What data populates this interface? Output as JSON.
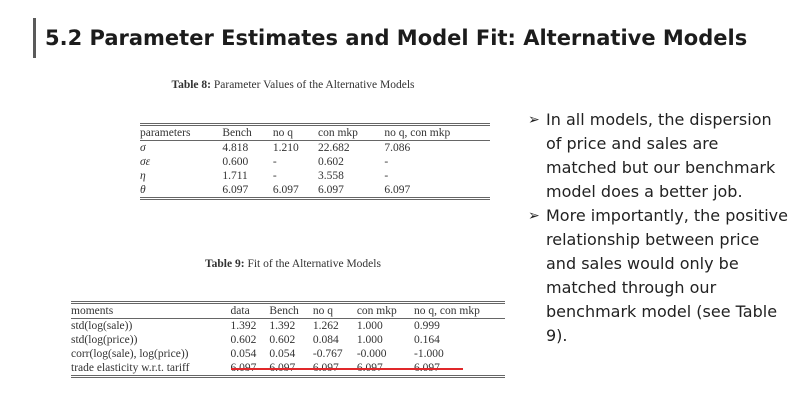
{
  "slide": {
    "title": "5.2 Parameter Estimates and Model Fit: Alternative Models"
  },
  "table8": {
    "caption_label": "Table 8:",
    "caption_text": "Parameter Values of the Alternative Models",
    "headers": [
      "parameters",
      "Bench",
      "no q",
      "con mkp",
      "no q, con mkp"
    ],
    "rows": [
      [
        "σ",
        "4.818",
        "1.210",
        "22.682",
        "7.086"
      ],
      [
        "σε",
        "0.600",
        "-",
        "0.602",
        "-"
      ],
      [
        "η",
        "1.711",
        "-",
        "3.558",
        "-"
      ],
      [
        "θ",
        "6.097",
        "6.097",
        "6.097",
        "6.097"
      ]
    ]
  },
  "table9": {
    "caption_label": "Table 9:",
    "caption_text": "Fit of the Alternative Models",
    "headers": [
      "moments",
      "data",
      "Bench",
      "no q",
      "con mkp",
      "no q, con mkp"
    ],
    "rows": [
      [
        "std(log(sale))",
        "1.392",
        "1.392",
        "1.262",
        "1.000",
        "0.999"
      ],
      [
        "std(log(price))",
        "0.602",
        "0.602",
        "0.084",
        "1.000",
        "0.164"
      ],
      [
        "corr(log(sale), log(price))",
        "0.054",
        "0.054",
        "-0.767",
        "-0.000",
        "-1.000"
      ],
      [
        "trade elasticity w.r.t. tariff",
        "6.097",
        "6.097",
        "6.097",
        "6.097",
        "6.097"
      ]
    ]
  },
  "bullets": [
    "In all models, the dispersion of price and sales are matched but our benchmark model does a better job.",
    "More importantly, the positive relationship between price and sales would only be matched through our benchmark model (see Table 9)."
  ],
  "colors": {
    "highlight": "#e0282a",
    "title_bar": "#5a5a5a"
  },
  "icons": {
    "bullet": "arrow-bullet-icon"
  }
}
